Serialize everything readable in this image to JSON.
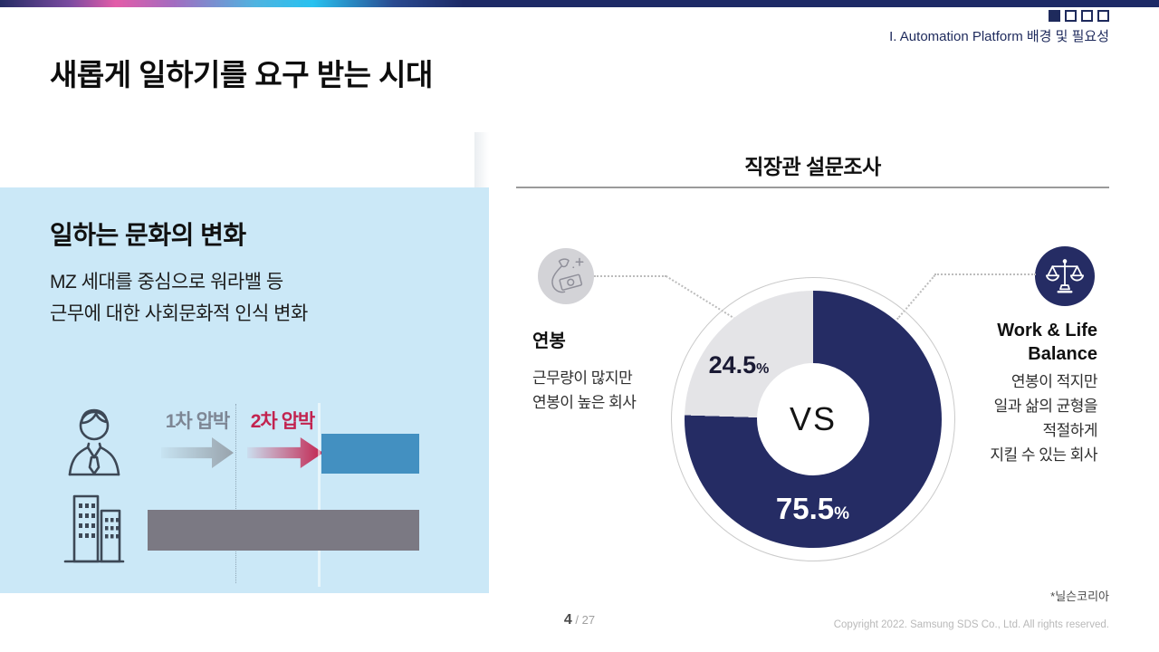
{
  "header": {
    "progress_squares": {
      "filled": 1,
      "total": 4
    },
    "section_label": "I. Automation Platform 배경 및 필요성"
  },
  "title": "새롭게 일하기를 요구 받는 시대",
  "left_panel": {
    "heading": "일하는 문화의 변화",
    "body_lines": [
      "MZ 세대를 중심으로 워라밸 등",
      "근무에 대한 사회문화적 인식 변화"
    ],
    "pressure_label_1": "1차 압박",
    "pressure_label_2": "2차 압박"
  },
  "survey": {
    "title": "직장관 설문조사",
    "left_option": {
      "label": "연봉",
      "desc_lines": [
        "근무량이 많지만",
        "연봉이 높은 회사"
      ]
    },
    "right_option": {
      "title_lines": [
        "Work & Life",
        "Balance"
      ],
      "desc_lines": [
        "연봉이 적지만",
        "일과 삶의 균형을",
        "적절하게",
        "지킬 수 있는 회사"
      ]
    },
    "source_note": "*닐슨코리아"
  },
  "chart_data": {
    "type": "pie",
    "donut": true,
    "title": "직장관 설문조사",
    "categories": [
      "Work & Life Balance",
      "연봉"
    ],
    "values": [
      75.5,
      24.5
    ],
    "colors": [
      "#252c64",
      "#e4e4e7"
    ],
    "value_labels": [
      "75.5",
      "24.5"
    ],
    "unit": "%",
    "center_label": "VS",
    "legend_position": "none"
  },
  "footer": {
    "page_current": "4",
    "page_separator": " / ",
    "page_total": "27",
    "copyright": "Copyright 2022. Samsung SDS Co., Ltd. All rights reserved."
  },
  "colors": {
    "accent_navy": "#252c64",
    "slice_gray": "#e4e4e7",
    "panel_blue": "#cbe8f7",
    "bar_blue": "#4390c1",
    "bar_gray": "#7b7983",
    "pressure_red": "#c2234f",
    "pressure_gray": "#7d8694"
  }
}
